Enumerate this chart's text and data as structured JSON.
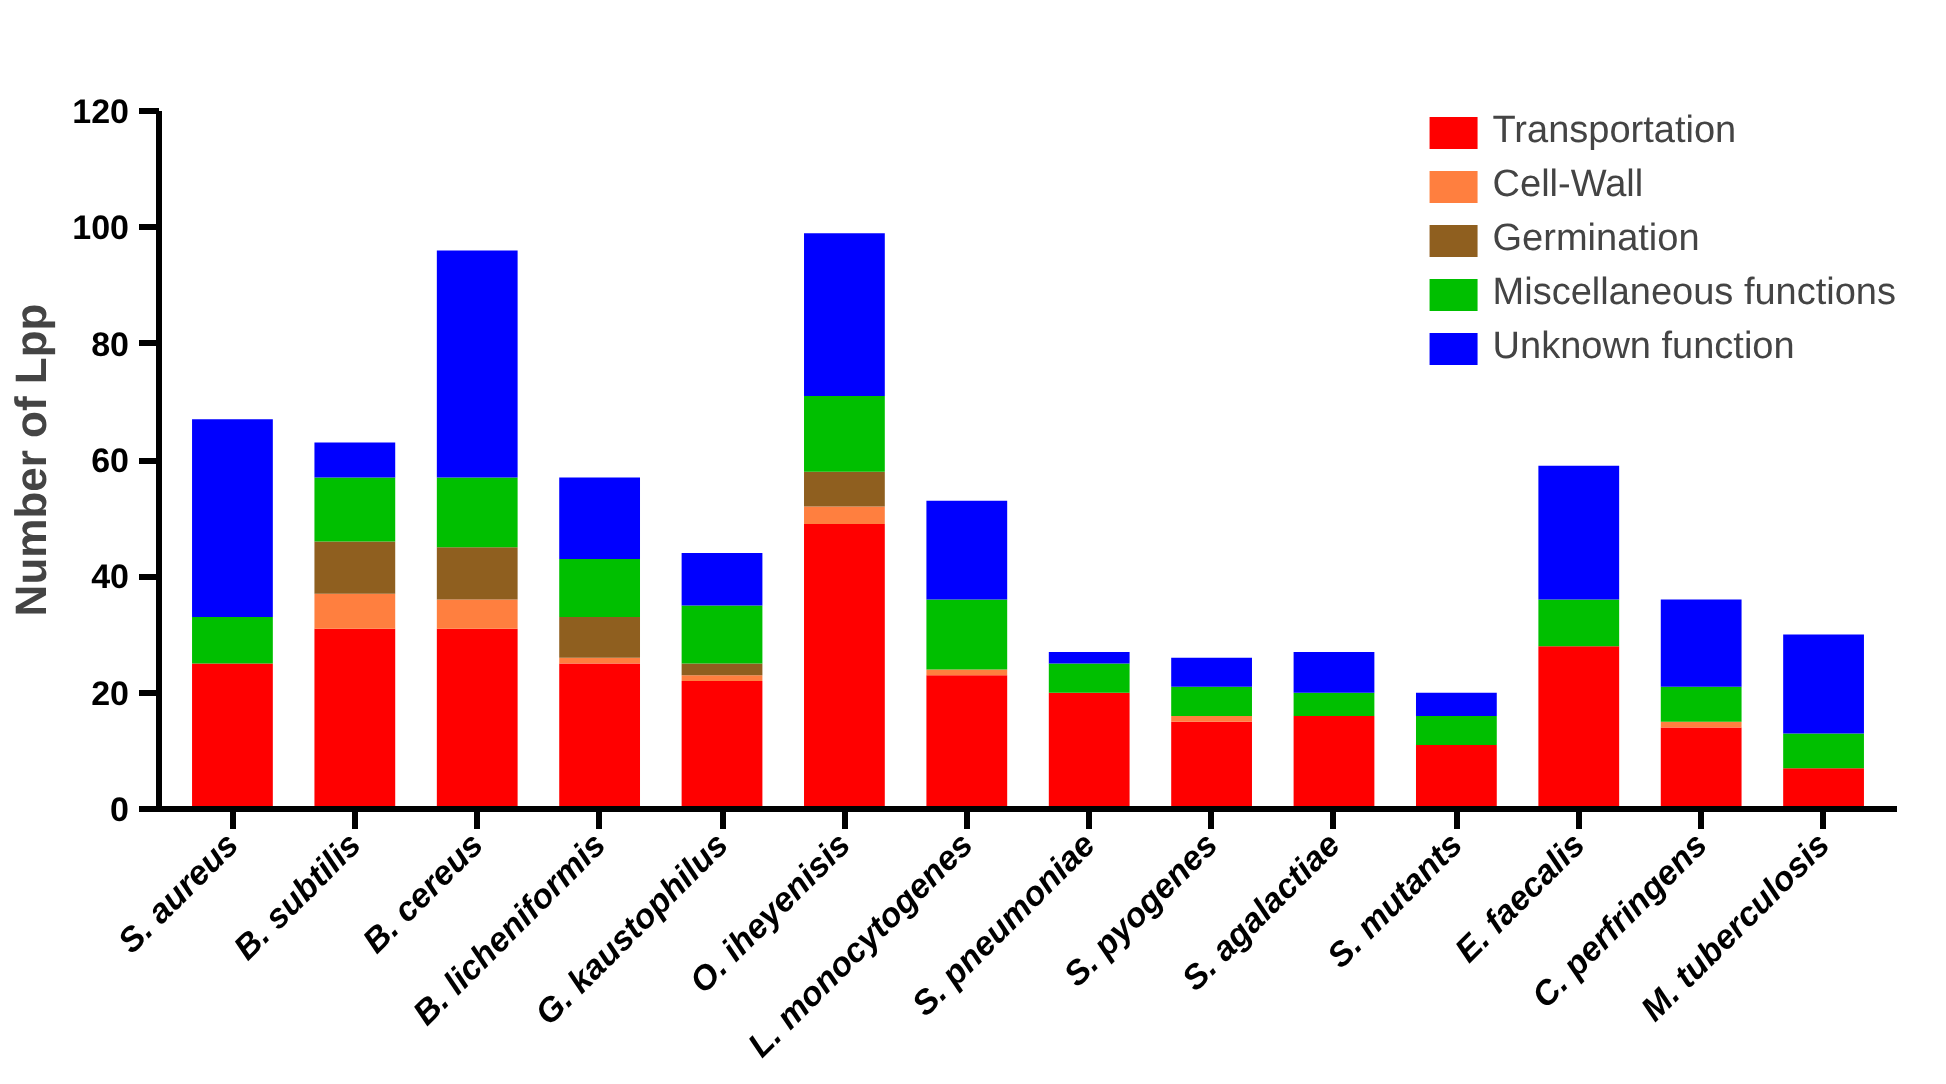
{
  "chart_data": {
    "type": "bar",
    "stacked": true,
    "ylabel": "Number of Lpp",
    "categories": [
      "S. aureus",
      "B. subtilis",
      "B. cereus",
      "B. licheniformis",
      "G. kaustophilus",
      "O. iheyenisis",
      "L. monocytogenes",
      "S. pneumoniae",
      "S. pyogenes",
      "S. agalactiae",
      "S. mutants",
      "E. faecalis",
      "C. perfringens",
      "M. tuberculosis"
    ],
    "series": [
      {
        "name": "Transportation",
        "color": "#ff0000",
        "values": [
          25,
          31,
          31,
          25,
          22,
          49,
          23,
          20,
          15,
          16,
          11,
          28,
          14,
          7
        ]
      },
      {
        "name": "Cell-Wall",
        "color": "#ff7f3f",
        "values": [
          0,
          6,
          5,
          1,
          1,
          3,
          1,
          0,
          1,
          0,
          0,
          0,
          1,
          0
        ]
      },
      {
        "name": "Germination",
        "color": "#8f5f1f",
        "values": [
          0,
          9,
          9,
          7,
          2,
          6,
          0,
          0,
          0,
          0,
          0,
          0,
          0,
          0
        ]
      },
      {
        "name": "Miscellaneous functions",
        "color": "#00bf00",
        "values": [
          8,
          11,
          12,
          10,
          10,
          13,
          12,
          5,
          5,
          4,
          5,
          8,
          6,
          6
        ]
      },
      {
        "name": "Unknown function",
        "color": "#0000ff",
        "values": [
          34,
          6,
          39,
          14,
          9,
          28,
          17,
          2,
          5,
          7,
          4,
          23,
          15,
          17
        ]
      }
    ],
    "ylim": [
      0,
      120
    ],
    "yticks": [
      0,
      20,
      40,
      60,
      80,
      100,
      120
    ],
    "grid": false,
    "legend": "top right"
  }
}
